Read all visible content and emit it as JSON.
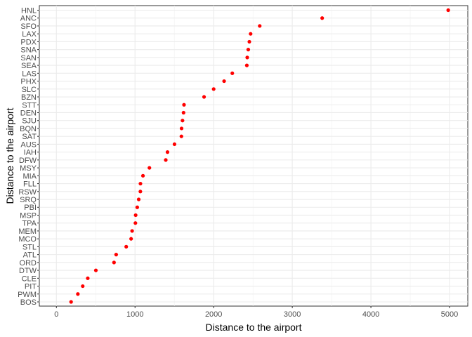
{
  "chart_data": {
    "type": "scatter",
    "title": "",
    "xlabel": "Distance to the airport",
    "ylabel": "Distance to the airport",
    "xlim": [
      0,
      5000
    ],
    "x_ticks": [
      0,
      1000,
      2000,
      3000,
      4000,
      5000
    ],
    "grid": true,
    "point_color": "#ff0000",
    "categories": [
      "BOS",
      "PWM",
      "PIT",
      "CLE",
      "DTW",
      "ORD",
      "ATL",
      "STL",
      "MCO",
      "MEM",
      "TPA",
      "MSP",
      "PBI",
      "SRQ",
      "RSW",
      "FLL",
      "MIA",
      "MSY",
      "DFW",
      "IAH",
      "AUS",
      "SAT",
      "BQN",
      "SJU",
      "DEN",
      "STT",
      "BZN",
      "SLC",
      "PHX",
      "LAS",
      "SEA",
      "SAN",
      "SNA",
      "PDX",
      "LAX",
      "SFO",
      "ANC",
      "HNL"
    ],
    "values": [
      187,
      273,
      335,
      399,
      502,
      733,
      760,
      888,
      950,
      963,
      1005,
      1008,
      1028,
      1047,
      1068,
      1069,
      1101,
      1183,
      1391,
      1413,
      1502,
      1590,
      1592,
      1604,
      1617,
      1623,
      1878,
      2000,
      2133,
      2237,
      2422,
      2427,
      2440,
      2454,
      2470,
      2586,
      3380,
      4983
    ]
  }
}
